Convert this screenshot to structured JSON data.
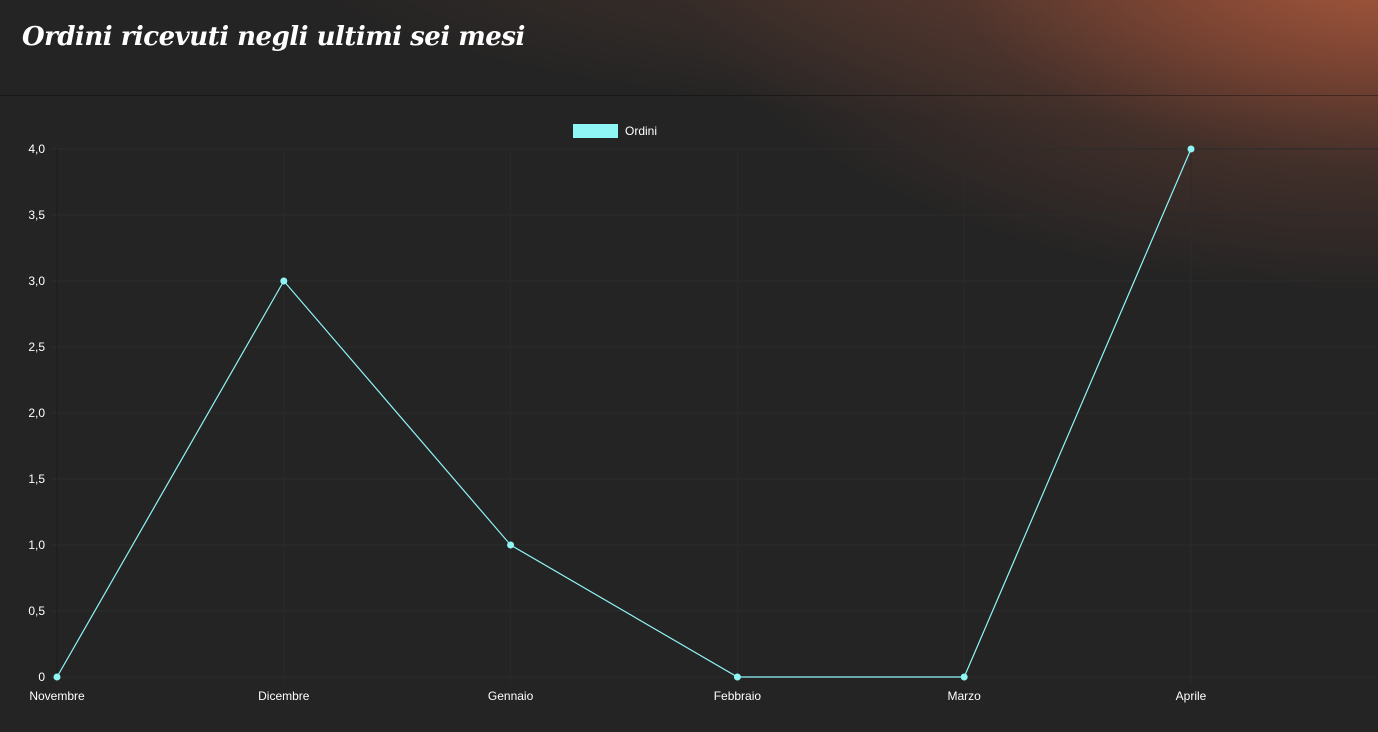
{
  "header": {
    "title": "Ordini ricevuti negli ultimi sei mesi"
  },
  "colors": {
    "series": "#8ff5f5",
    "grid": "#2b2b2b",
    "text": "#ffffff"
  },
  "chart_data": {
    "type": "line",
    "title": "",
    "categories": [
      "Novembre",
      "Dicembre",
      "Gennaio",
      "Febbraio",
      "Marzo",
      "Aprile"
    ],
    "series": [
      {
        "name": "Ordini",
        "values": [
          0,
          3,
          1,
          0,
          0,
          4
        ]
      }
    ],
    "ylim": [
      0,
      4
    ],
    "yticks": [
      0,
      0.5,
      1,
      1.5,
      2,
      2.5,
      3,
      3.5,
      4
    ],
    "ytick_labels": [
      "0",
      "0,5",
      "1,0",
      "1,5",
      "2,0",
      "2,5",
      "3,0",
      "3,5",
      "4,0"
    ],
    "legend_position": "top-center",
    "grid": true
  }
}
